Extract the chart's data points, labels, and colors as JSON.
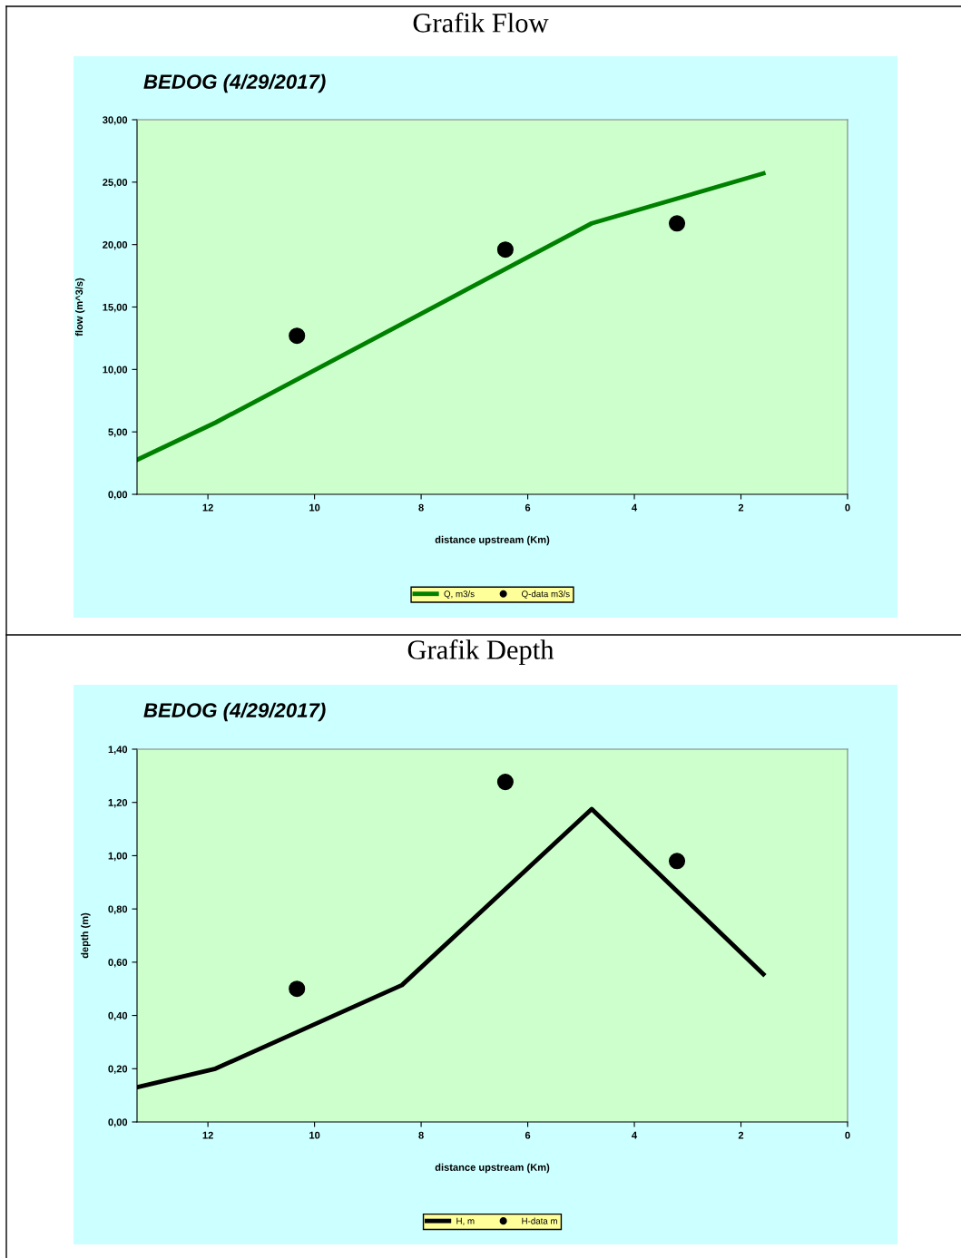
{
  "chart_data": [
    {
      "type": "line",
      "title": "Grafik Flow",
      "subtitle": "BEDOG (4/29/2017)",
      "xlabel": "distance upstream (Km)",
      "ylabel": "flow (m^3/s)",
      "xlim": [
        13.33,
        0
      ],
      "xticks": [
        12,
        10,
        8,
        6,
        4,
        2,
        0
      ],
      "ylim": [
        0,
        30
      ],
      "yticks": [
        {
          "value": 0,
          "label": "0,00"
        },
        {
          "value": 5,
          "label": "5,00"
        },
        {
          "value": 10,
          "label": "10,00"
        },
        {
          "value": 15,
          "label": "15,00"
        },
        {
          "value": 20,
          "label": "20,00"
        },
        {
          "value": 25,
          "label": "25,00"
        },
        {
          "value": 30,
          "label": "30,00"
        }
      ],
      "grid": false,
      "legend": "bottom",
      "series": [
        {
          "name": "Q, m3/s",
          "color": "#008000",
          "x": [
            13.33,
            11.86,
            8.36,
            4.8,
            1.58
          ],
          "values": [
            2.76,
            5.74,
            13.65,
            21.7,
            25.7
          ],
          "marker": "none",
          "line_style": "solid"
        },
        {
          "name": "Q-data m3/s",
          "type": "scatter",
          "color": "#000000",
          "x": [
            10.33,
            6.42,
            3.2
          ],
          "values": [
            12.7,
            19.6,
            21.7
          ],
          "marker": "circle"
        }
      ]
    },
    {
      "type": "line",
      "title": "Grafik Depth",
      "subtitle": "BEDOG (4/29/2017)",
      "xlabel": "distance upstream (Km)",
      "ylabel": "depth (m)",
      "xlim": [
        13.33,
        0
      ],
      "xticks": [
        12,
        10,
        8,
        6,
        4,
        2,
        0
      ],
      "ylim": [
        0,
        1.4
      ],
      "yticks": [
        {
          "value": 0,
          "label": "0,00"
        },
        {
          "value": 0.2,
          "label": "0,20"
        },
        {
          "value": 0.4,
          "label": "0,40"
        },
        {
          "value": 0.6,
          "label": "0,60"
        },
        {
          "value": 0.8,
          "label": "0,80"
        },
        {
          "value": 1.0,
          "label": "1,00"
        },
        {
          "value": 1.2,
          "label": "1,20"
        },
        {
          "value": 1.4,
          "label": "1,40"
        }
      ],
      "grid": false,
      "legend": "bottom",
      "series": [
        {
          "name": "H, m",
          "color": "#000000",
          "x": [
            13.33,
            11.86,
            8.36,
            4.8,
            1.58
          ],
          "values": [
            0.13,
            0.2,
            0.514,
            1.175,
            0.555
          ],
          "marker": "none",
          "line_style": "solid"
        },
        {
          "name": "H-data m",
          "type": "scatter",
          "color": "#000000",
          "x": [
            10.33,
            6.42,
            3.2
          ],
          "values": [
            0.5,
            1.277,
            0.98
          ],
          "marker": "circle"
        }
      ]
    }
  ]
}
